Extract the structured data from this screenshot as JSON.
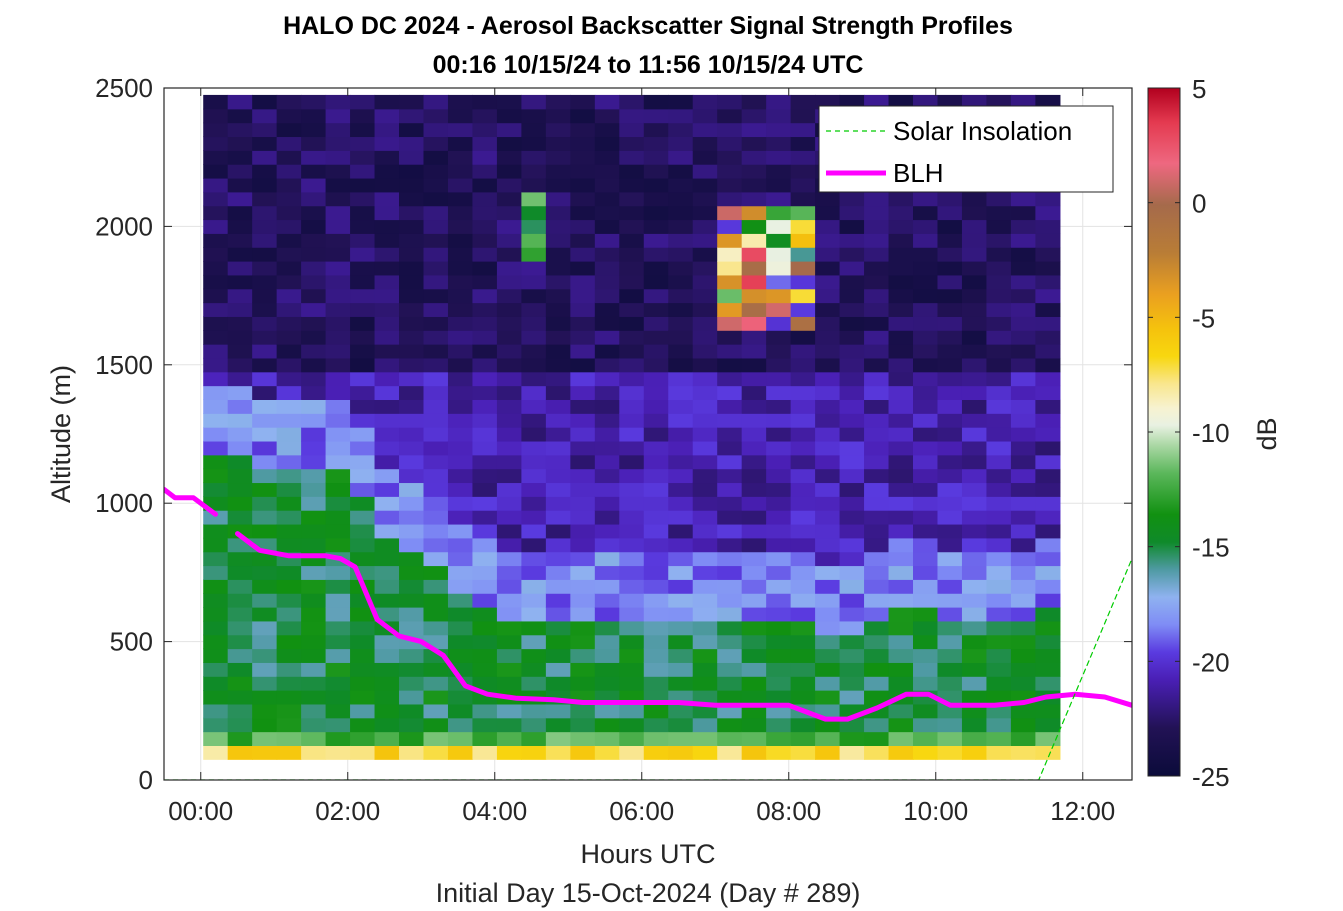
{
  "chart_data": {
    "type": "heatmap",
    "title": "HALO DC 2024 - Aerosol Backscatter Signal Strength Profiles",
    "subtitle": "00:16 10/15/24 to 11:56 10/15/24  UTC",
    "xlabel": "Hours UTC",
    "footer": "Initial Day 15-Oct-2024 (Day # 289)",
    "ylabel": "Altitude (m)",
    "colorbar_label": "dB",
    "xlim": [
      -0.5,
      12.67
    ],
    "ylim": [
      0,
      2500
    ],
    "clim": [
      -25,
      5
    ],
    "grid": true,
    "legend_position": "top-right",
    "x_ticks": [
      0,
      2,
      4,
      6,
      8,
      10,
      12
    ],
    "x_tick_labels": [
      "00:00",
      "02:00",
      "04:00",
      "06:00",
      "08:00",
      "10:00",
      "12:00"
    ],
    "y_ticks": [
      0,
      500,
      1000,
      1500,
      2000,
      2500
    ],
    "y_tick_labels": [
      "0",
      "500",
      "1000",
      "1500",
      "2000",
      "2500"
    ],
    "colorbar_ticks": [
      5,
      0,
      -5,
      -10,
      -15,
      -20,
      -25
    ],
    "colorbar_tick_labels": [
      "5",
      "0",
      "-5",
      "-10",
      "-15",
      "-20",
      "-25"
    ],
    "heatmap": {
      "time_start_h": 0.2,
      "time_step_h": 0.333,
      "n_cols": 35,
      "alt_start_m": 100,
      "alt_step_m": 50,
      "n_rows": 48,
      "description_note": "signal in dB; near-surface bin ~-7 dB, boundary layer -15 to -17 dB, residual layer ~-19 dB, free troposphere -22 to -24 dB",
      "cloud_patch": {
        "time_h": [
          7.1,
          8.5
        ],
        "alt_m": [
          1650,
          2050
        ],
        "peak_db": 3
      },
      "cloud_patch2": {
        "time_h": [
          4.4,
          4.7
        ],
        "alt_m": [
          1900,
          2100
        ],
        "peak_db": -15
      }
    },
    "series": [
      {
        "name": "BLH",
        "color": "#ff00ff",
        "x": [
          -0.5,
          -0.35,
          -0.1,
          0.1,
          0.2
        ],
        "y": [
          1050,
          1020,
          1020,
          980,
          960
        ]
      },
      {
        "name": "BLH",
        "color": "#ff00ff",
        "x": [
          0.5,
          0.8,
          1.2,
          1.7,
          1.9,
          2.1,
          2.4,
          2.7,
          3.0,
          3.3,
          3.6,
          3.9,
          4.3,
          4.8,
          5.2,
          5.6,
          6.0,
          6.5,
          7.0,
          7.5,
          8.0,
          8.5,
          8.8,
          9.2,
          9.6,
          9.9,
          10.2,
          10.5,
          10.8,
          11.2,
          11.5,
          11.9,
          12.3,
          12.67
        ],
        "y": [
          890,
          830,
          810,
          810,
          800,
          770,
          580,
          520,
          500,
          450,
          340,
          310,
          295,
          290,
          280,
          280,
          280,
          280,
          270,
          270,
          270,
          220,
          220,
          260,
          310,
          310,
          270,
          270,
          270,
          280,
          300,
          310,
          300,
          270
        ]
      },
      {
        "name": "Solar Insolation",
        "color": "#00cc00",
        "style": "dashed",
        "x": [
          -0.5,
          11.4,
          12.67
        ],
        "y": [
          0,
          0,
          800
        ]
      }
    ],
    "legend": [
      "Solar Insolation",
      "BLH"
    ]
  }
}
